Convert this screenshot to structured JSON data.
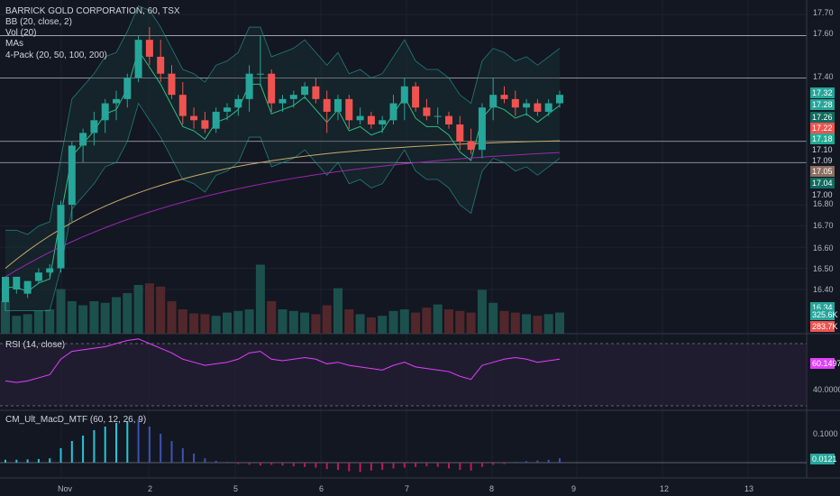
{
  "legend": {
    "title": "BARRICK GOLD CORPORATION, 60, TSX",
    "bb": "BB (20, close, 2)",
    "vol": "Vol (20)",
    "mas": "MAs",
    "pack": "4-Pack (20, 50, 100, 200)",
    "rsi": "RSI (14, close)",
    "macd": "CM_Ult_MacD_MTF (60, 12, 26, 9)"
  },
  "price_axis": {
    "ticks": [
      "17.70",
      "17.60",
      "17.40",
      "16.80",
      "16.70",
      "16.60",
      "16.50",
      "16.40"
    ],
    "tags": [
      {
        "text": "17.32",
        "color": "#26a69a"
      },
      {
        "text": "17.28",
        "color": "#26a69a"
      },
      {
        "text": "17.26",
        "color": "#0f6b5e"
      },
      {
        "text": "17.22",
        "color": "#ef5350"
      },
      {
        "text": "17.18",
        "color": "#22ab94"
      },
      {
        "text": "17.10",
        "color": "#131722"
      },
      {
        "text": "17.09",
        "color": "#131722"
      },
      {
        "text": "17.05",
        "color": "#8d6e63"
      },
      {
        "text": "17.04",
        "color": "#0f6b5e"
      },
      {
        "text": "17.00",
        "color": "#131722"
      },
      {
        "text": "16.34",
        "color": "#26a69a"
      },
      {
        "text": "325.6K",
        "color": "#26a69a"
      },
      {
        "text": "283.7K",
        "color": "#ef5350"
      }
    ]
  },
  "rsi_axis": {
    "ticks": [
      "40.0000"
    ],
    "tag": "60.1497"
  },
  "macd_axis": {
    "ticks": [
      "0.1000"
    ],
    "tag": "0.0121"
  },
  "time_axis": [
    "Nov",
    "2",
    "5",
    "6",
    "7",
    "8",
    "9",
    "12",
    "13"
  ],
  "colors": {
    "up": "#26a69a",
    "down": "#ef5350",
    "bg": "#131722",
    "rsi": "#e040fb",
    "grid": "#1e222d"
  },
  "chart_data": {
    "type": "candlestick",
    "symbol": "BARRICK GOLD CORPORATION, 60, TSX",
    "candles": [
      {
        "o": 16.34,
        "h": 16.46,
        "l": 16.3,
        "c": 16.46
      },
      {
        "o": 16.4,
        "h": 16.46,
        "l": 16.38,
        "c": 16.46
      },
      {
        "o": 16.38,
        "h": 16.44,
        "l": 16.36,
        "c": 16.44
      },
      {
        "o": 16.44,
        "h": 16.5,
        "l": 16.43,
        "c": 16.48
      },
      {
        "o": 16.48,
        "h": 16.52,
        "l": 16.46,
        "c": 16.5
      },
      {
        "o": 16.5,
        "h": 16.82,
        "l": 16.48,
        "c": 16.8
      },
      {
        "o": 16.8,
        "h": 17.1,
        "l": 16.72,
        "c": 17.08
      },
      {
        "o": 17.08,
        "h": 17.16,
        "l": 17.0,
        "c": 17.14
      },
      {
        "o": 17.14,
        "h": 17.24,
        "l": 17.08,
        "c": 17.2
      },
      {
        "o": 17.2,
        "h": 17.3,
        "l": 17.14,
        "c": 17.28
      },
      {
        "o": 17.28,
        "h": 17.34,
        "l": 17.2,
        "c": 17.3
      },
      {
        "o": 17.3,
        "h": 17.42,
        "l": 17.26,
        "c": 17.4
      },
      {
        "o": 17.4,
        "h": 17.6,
        "l": 17.38,
        "c": 17.58
      },
      {
        "o": 17.58,
        "h": 17.64,
        "l": 17.46,
        "c": 17.5
      },
      {
        "o": 17.5,
        "h": 17.58,
        "l": 17.38,
        "c": 17.42
      },
      {
        "o": 17.42,
        "h": 17.46,
        "l": 17.3,
        "c": 17.32
      },
      {
        "o": 17.32,
        "h": 17.38,
        "l": 17.18,
        "c": 17.22
      },
      {
        "o": 17.22,
        "h": 17.26,
        "l": 17.16,
        "c": 17.2
      },
      {
        "o": 17.2,
        "h": 17.24,
        "l": 17.14,
        "c": 17.16
      },
      {
        "o": 17.16,
        "h": 17.26,
        "l": 17.14,
        "c": 17.24
      },
      {
        "o": 17.24,
        "h": 17.28,
        "l": 17.2,
        "c": 17.26
      },
      {
        "o": 17.26,
        "h": 17.32,
        "l": 17.22,
        "c": 17.3
      },
      {
        "o": 17.3,
        "h": 17.46,
        "l": 17.24,
        "c": 17.42
      },
      {
        "o": 17.42,
        "h": 17.6,
        "l": 17.36,
        "c": 17.42
      },
      {
        "o": 17.42,
        "h": 17.44,
        "l": 17.24,
        "c": 17.28
      },
      {
        "o": 17.28,
        "h": 17.32,
        "l": 17.24,
        "c": 17.3
      },
      {
        "o": 17.3,
        "h": 17.34,
        "l": 17.26,
        "c": 17.32
      },
      {
        "o": 17.32,
        "h": 17.38,
        "l": 17.3,
        "c": 17.36
      },
      {
        "o": 17.36,
        "h": 17.4,
        "l": 17.28,
        "c": 17.3
      },
      {
        "o": 17.3,
        "h": 17.34,
        "l": 17.14,
        "c": 17.24
      },
      {
        "o": 17.24,
        "h": 17.32,
        "l": 17.2,
        "c": 17.3
      },
      {
        "o": 17.3,
        "h": 17.32,
        "l": 17.16,
        "c": 17.2
      },
      {
        "o": 17.2,
        "h": 17.26,
        "l": 17.18,
        "c": 17.22
      },
      {
        "o": 17.22,
        "h": 17.24,
        "l": 17.16,
        "c": 17.18
      },
      {
        "o": 17.18,
        "h": 17.22,
        "l": 17.14,
        "c": 17.2
      },
      {
        "o": 17.2,
        "h": 17.32,
        "l": 17.18,
        "c": 17.28
      },
      {
        "o": 17.28,
        "h": 17.4,
        "l": 17.2,
        "c": 17.36
      },
      {
        "o": 17.36,
        "h": 17.38,
        "l": 17.24,
        "c": 17.26
      },
      {
        "o": 17.26,
        "h": 17.3,
        "l": 17.2,
        "c": 17.22
      },
      {
        "o": 17.22,
        "h": 17.26,
        "l": 17.18,
        "c": 17.22
      },
      {
        "o": 17.22,
        "h": 17.24,
        "l": 17.16,
        "c": 17.18
      },
      {
        "o": 17.18,
        "h": 17.22,
        "l": 17.06,
        "c": 17.1
      },
      {
        "o": 17.1,
        "h": 17.16,
        "l": 17.04,
        "c": 17.06
      },
      {
        "o": 17.06,
        "h": 17.28,
        "l": 17.02,
        "c": 17.26
      },
      {
        "o": 17.26,
        "h": 17.4,
        "l": 17.2,
        "c": 17.32
      },
      {
        "o": 17.32,
        "h": 17.36,
        "l": 17.28,
        "c": 17.3
      },
      {
        "o": 17.3,
        "h": 17.34,
        "l": 17.22,
        "c": 17.26
      },
      {
        "o": 17.26,
        "h": 17.3,
        "l": 17.22,
        "c": 17.28
      },
      {
        "o": 17.28,
        "h": 17.3,
        "l": 17.22,
        "c": 17.24
      },
      {
        "o": 17.24,
        "h": 17.3,
        "l": 17.22,
        "c": 17.28
      },
      {
        "o": 17.28,
        "h": 17.34,
        "l": 17.26,
        "c": 17.32
      }
    ],
    "volume": [
      0.4,
      0.22,
      0.24,
      0.28,
      0.3,
      0.55,
      0.4,
      0.35,
      0.4,
      0.38,
      0.45,
      0.5,
      0.6,
      0.62,
      0.58,
      0.4,
      0.3,
      0.25,
      0.24,
      0.22,
      0.26,
      0.28,
      0.3,
      0.85,
      0.4,
      0.3,
      0.28,
      0.26,
      0.24,
      0.35,
      0.56,
      0.3,
      0.24,
      0.2,
      0.22,
      0.28,
      0.3,
      0.26,
      0.32,
      0.36,
      0.3,
      0.28,
      0.26,
      0.54,
      0.38,
      0.28,
      0.26,
      0.24,
      0.22,
      0.24,
      0.26
    ],
    "rsi": [
      46,
      45,
      46,
      48,
      50,
      60,
      65,
      66,
      67,
      68,
      70,
      72,
      73,
      70,
      67,
      64,
      60,
      58,
      56,
      57,
      58,
      60,
      64,
      65,
      60,
      59,
      60,
      61,
      60,
      57,
      58,
      56,
      55,
      54,
      53,
      56,
      58,
      55,
      54,
      53,
      52,
      49,
      47,
      56,
      58,
      60,
      61,
      60,
      58,
      59,
      60
    ],
    "macd": [
      0.008,
      0.008,
      0.009,
      0.01,
      0.012,
      0.04,
      0.06,
      0.075,
      0.09,
      0.1,
      0.11,
      0.115,
      0.12,
      0.1,
      0.08,
      0.06,
      0.04,
      0.025,
      0.012,
      0.005,
      0.002,
      -0.004,
      -0.006,
      -0.008,
      -0.006,
      -0.008,
      -0.01,
      -0.012,
      -0.014,
      -0.018,
      -0.02,
      -0.024,
      -0.026,
      -0.022,
      -0.02,
      -0.016,
      -0.014,
      -0.012,
      -0.01,
      -0.012,
      -0.016,
      -0.02,
      -0.022,
      -0.012,
      -0.006,
      -0.004,
      0.002,
      0.004,
      0.006,
      0.008,
      0.012
    ]
  }
}
